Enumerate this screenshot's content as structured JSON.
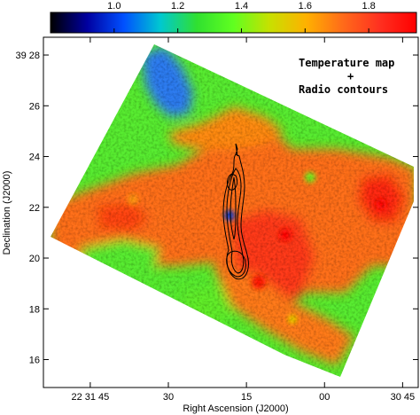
{
  "chart_data": {
    "type": "heatmap",
    "title": "",
    "xlabel": "Right Ascension (J2000)",
    "ylabel": "Declination (J2000)",
    "annotation": [
      "Temperature map",
      "+",
      "Radio contours"
    ],
    "colorbar": {
      "range": [
        0.8,
        1.95
      ],
      "ticks": [
        "1.0",
        "1.2",
        "1.4",
        "1.6",
        "1.8"
      ],
      "tick_values": [
        1.0,
        1.2,
        1.4,
        1.6,
        1.8
      ],
      "colors": [
        "#000000",
        "#0000a0",
        "#0050ff",
        "#00c8d0",
        "#30e030",
        "#60ff20",
        "#c8e000",
        "#ffb000",
        "#ff6a1a",
        "#ff3020",
        "#ff0000"
      ]
    },
    "x_axis": {
      "ticks": [
        "22 31 45",
        "30",
        "15",
        "00",
        "30 45"
      ],
      "range_seconds_of_22h31m": [
        54,
        -18
      ],
      "tick_values_seconds_of_22h31m": [
        45,
        30,
        15,
        0,
        -15
      ]
    },
    "y_axis": {
      "ticks": [
        "39 28",
        "26",
        "24",
        "22",
        "20",
        "18",
        "16"
      ],
      "range_arcmin_above_39deg": [
        14.9,
        28.7
      ],
      "tick_values_arcmin_above_39deg": [
        28,
        26,
        24,
        22,
        20,
        18,
        16
      ]
    },
    "temperature_regions": [
      {
        "region": "background",
        "value": 1.42
      },
      {
        "region": "north-west cool blob",
        "value": 1.15
      },
      {
        "region": "central east-west band",
        "value": 1.7
      },
      {
        "region": "southern plume",
        "value": 1.82
      },
      {
        "region": "eastern hot spot",
        "value": 1.85
      },
      {
        "region": "central compact source",
        "value": 1.0
      }
    ]
  }
}
